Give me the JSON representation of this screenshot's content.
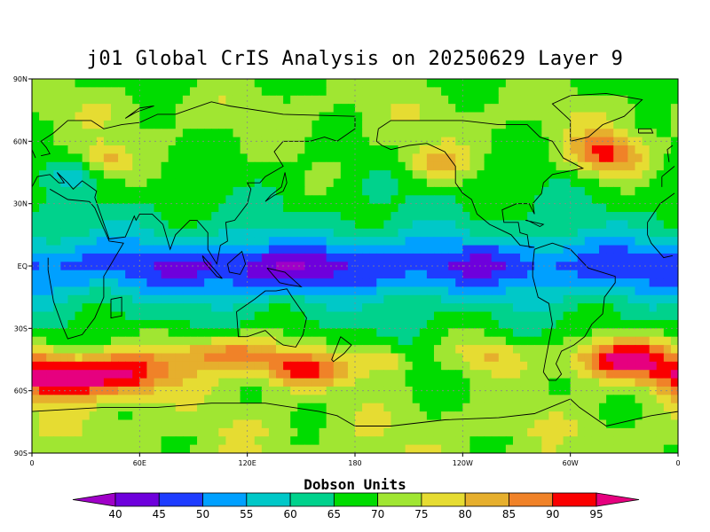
{
  "title": "j01 Global CrIS Analysis on 20250629 Layer 9",
  "colorbar": {
    "label": "Dobson Units",
    "ticks": [
      "40",
      "45",
      "50",
      "55",
      "60",
      "65",
      "70",
      "75",
      "80",
      "85",
      "90",
      "95"
    ],
    "bins": [
      {
        "lo": null,
        "hi": 40,
        "color": "#a000c8"
      },
      {
        "lo": 40,
        "hi": 45,
        "color": "#6e00dc"
      },
      {
        "lo": 45,
        "hi": 50,
        "color": "#1e3cff"
      },
      {
        "lo": 50,
        "hi": 55,
        "color": "#00a0ff"
      },
      {
        "lo": 55,
        "hi": 60,
        "color": "#00c8c8"
      },
      {
        "lo": 60,
        "hi": 65,
        "color": "#00d28c"
      },
      {
        "lo": 65,
        "hi": 70,
        "color": "#00dc00"
      },
      {
        "lo": 70,
        "hi": 75,
        "color": "#a0e632"
      },
      {
        "lo": 75,
        "hi": 80,
        "color": "#e6dc32"
      },
      {
        "lo": 80,
        "hi": 85,
        "color": "#e6af2d"
      },
      {
        "lo": 85,
        "hi": 90,
        "color": "#f08228"
      },
      {
        "lo": 90,
        "hi": 95,
        "color": "#fa0000"
      },
      {
        "lo": 95,
        "hi": null,
        "color": "#e6007f"
      }
    ]
  },
  "axes": {
    "lat_ticks": [
      "90N",
      "60N",
      "30N",
      "EQ",
      "30S",
      "60S",
      "90S"
    ],
    "lon_ticks": [
      "0",
      "60E",
      "120E",
      "180",
      "120W",
      "60W",
      "0"
    ]
  },
  "map_data": {
    "type": "contour-fill",
    "units": "Dobson Units",
    "lon_range": [
      0,
      360
    ],
    "lat_range": [
      -90,
      90
    ],
    "features": [
      {
        "name": "tropical low band",
        "lon_range": [
          45,
          300
        ],
        "lat_range": [
          -15,
          15
        ],
        "level": 48
      },
      {
        "name": "maritime continent minimum",
        "lon": 120,
        "lat": -3,
        "level": 43
      },
      {
        "name": "southern ocean high (Indian sector)",
        "lon_range": [
          0,
          110
        ],
        "lat_range": [
          -60,
          -45
        ],
        "level": 92
      },
      {
        "name": "southern ocean high (Australian sector)",
        "lon_range": [
          90,
          180
        ],
        "lat_range": [
          -55,
          -35
        ],
        "level": 92
      },
      {
        "name": "south atlantic high",
        "lon_range": [
          300,
          360
        ],
        "lat_range": [
          -55,
          -35
        ],
        "level": 94
      },
      {
        "name": "north atlantic high",
        "lon": 320,
        "lat": 55,
        "level": 88
      },
      {
        "name": "antarctic plateau",
        "lon_range": [
          0,
          360
        ],
        "lat_range": [
          -90,
          -70
        ],
        "level": 75
      },
      {
        "name": "arctic ring",
        "lon_range": [
          0,
          360
        ],
        "lat_range": [
          70,
          80
        ],
        "level": 72
      }
    ]
  }
}
